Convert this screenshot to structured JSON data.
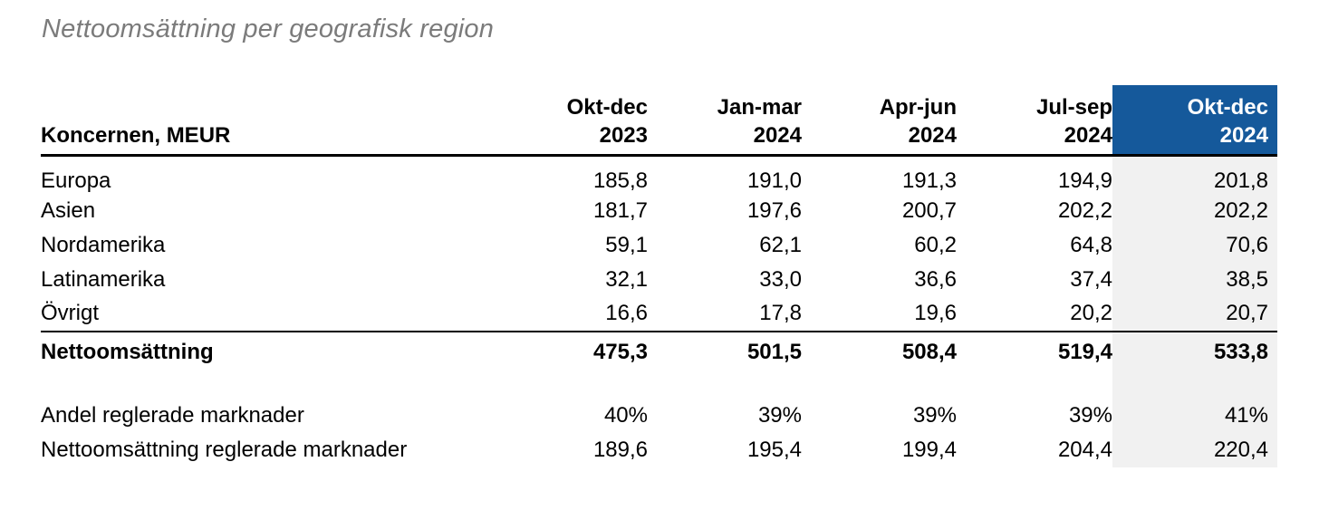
{
  "title": "Nettoomsättning per geografisk region",
  "table": {
    "corner_header": "Koncernen, MEUR",
    "columns": [
      {
        "period": "Okt-dec",
        "year": "2023"
      },
      {
        "period": "Jan-mar",
        "year": "2024"
      },
      {
        "period": "Apr-jun",
        "year": "2024"
      },
      {
        "period": "Jul-sep",
        "year": "2024"
      },
      {
        "period": "Okt-dec",
        "year": "2024"
      }
    ],
    "highlighted_column_index": 4,
    "rows": [
      {
        "label": "Europa",
        "values": [
          "185,8",
          "191,0",
          "191,3",
          "194,9",
          "201,8"
        ]
      },
      {
        "label": "Asien",
        "values": [
          "181,7",
          "197,6",
          "200,7",
          "202,2",
          "202,2"
        ]
      },
      {
        "label": "Nordamerika",
        "values": [
          "59,1",
          "62,1",
          "60,2",
          "64,8",
          "70,6"
        ]
      },
      {
        "label": "Latinamerika",
        "values": [
          "32,1",
          "33,0",
          "36,6",
          "37,4",
          "38,5"
        ]
      },
      {
        "label": "Övrigt",
        "values": [
          "16,6",
          "17,8",
          "19,6",
          "20,2",
          "20,7"
        ]
      },
      {
        "label": "Nettoomsättning",
        "values": [
          "475,3",
          "501,5",
          "508,4",
          "519,4",
          "533,8"
        ],
        "bold": true
      },
      {
        "label": "Andel reglerade marknader",
        "values": [
          "40%",
          "39%",
          "39%",
          "39%",
          "41%"
        ]
      },
      {
        "label": "Nettoomsättning reglerade marknader",
        "values": [
          "189,6",
          "195,4",
          "199,4",
          "204,4",
          "220,4"
        ]
      }
    ]
  },
  "colors": {
    "highlight_header_bg": "#15599B",
    "highlight_header_text": "#FFFFFF",
    "highlight_column_bg": "#F1F1F1",
    "title_text": "#7B7B7B",
    "body_text": "#000000"
  }
}
